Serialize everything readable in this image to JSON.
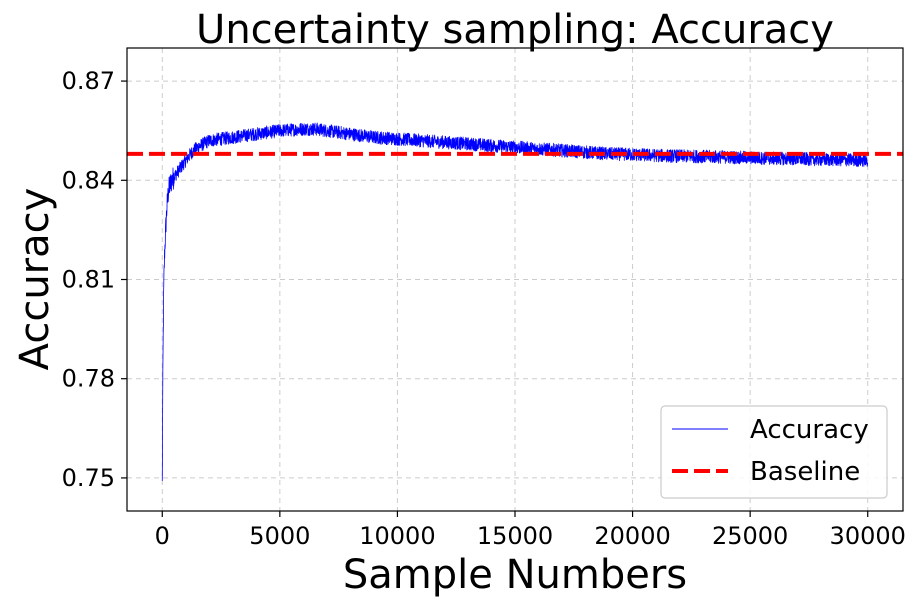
{
  "chart_data": {
    "type": "line",
    "title": "Uncertainty sampling: Accuracy",
    "xlabel": "Sample Numbers",
    "ylabel": "Accuracy",
    "xlim": [
      -1500,
      31500
    ],
    "ylim": [
      0.74,
      0.88
    ],
    "x_ticks": [
      0,
      5000,
      10000,
      15000,
      20000,
      25000,
      30000
    ],
    "x_tick_labels": [
      "0",
      "5000",
      "10000",
      "15000",
      "20000",
      "25000",
      "30000"
    ],
    "y_ticks": [
      0.75,
      0.78,
      0.81,
      0.84,
      0.87
    ],
    "y_tick_labels": [
      "0.75",
      "0.78",
      "0.81",
      "0.84",
      "0.87"
    ],
    "grid": true,
    "legend_position": "lower-right",
    "series": [
      {
        "name": "Accuracy",
        "style": "solid",
        "color": "#0000ff",
        "noise_band": 0.002,
        "x": [
          0,
          15,
          30,
          50,
          70,
          100,
          150,
          200,
          250,
          300,
          400,
          500,
          600,
          800,
          1000,
          1200,
          1500,
          2000,
          3000,
          4000,
          5000,
          6000,
          6500,
          7000,
          8000,
          9000,
          10000,
          11000,
          12000,
          13000,
          14000,
          15000,
          16000,
          17000,
          18000,
          19000,
          20000,
          21000,
          22000,
          23000,
          24000,
          25000,
          26000,
          27000,
          28000,
          29000,
          30000
        ],
        "y": [
          0.748,
          0.77,
          0.785,
          0.8,
          0.81,
          0.818,
          0.826,
          0.832,
          0.836,
          0.838,
          0.84,
          0.841,
          0.842,
          0.844,
          0.846,
          0.848,
          0.85,
          0.852,
          0.853,
          0.854,
          0.855,
          0.8555,
          0.8555,
          0.855,
          0.854,
          0.853,
          0.8525,
          0.852,
          0.8515,
          0.851,
          0.8505,
          0.85,
          0.8495,
          0.849,
          0.8485,
          0.848,
          0.8478,
          0.8475,
          0.8473,
          0.8472,
          0.847,
          0.8468,
          0.8466,
          0.8465,
          0.8463,
          0.8462,
          0.846
        ]
      },
      {
        "name": "Baseline",
        "style": "dashed",
        "color": "#ff0000",
        "y_constant": 0.848
      }
    ]
  }
}
